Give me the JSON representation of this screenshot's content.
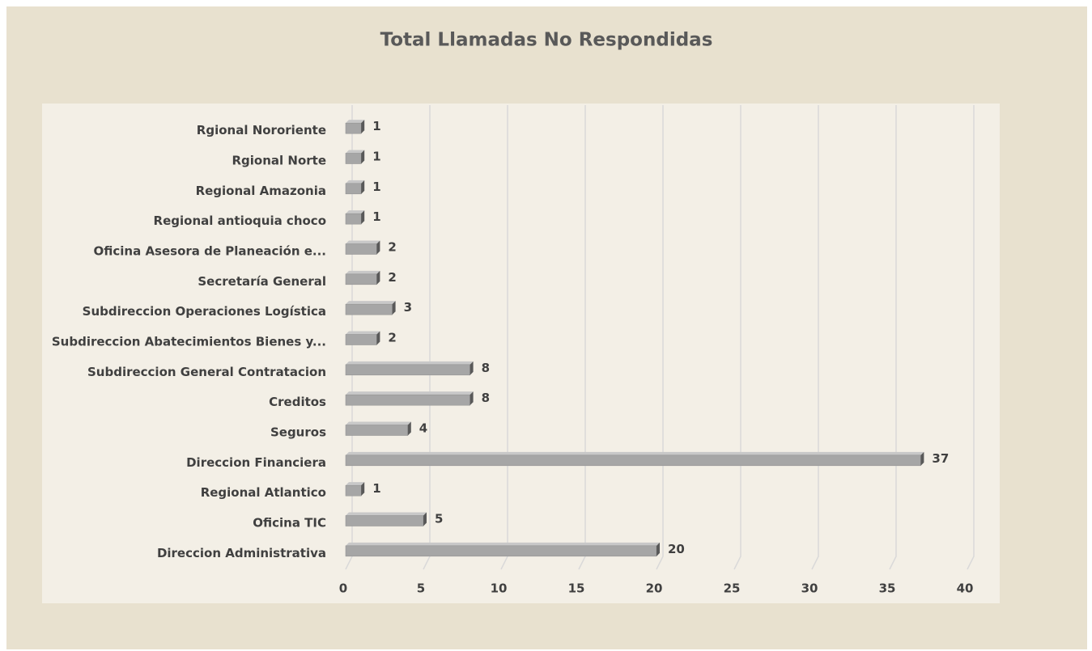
{
  "chart_data": {
    "type": "bar",
    "orientation": "horizontal",
    "title": "Total Llamadas No Respondidas",
    "categories": [
      "Rgional Nororiente",
      "Rgional Norte",
      "Regional Amazonia",
      "Regional antioquia choco",
      "Oficina Asesora de Planeación e...",
      "Secretaría General",
      "Subdireccion Operaciones Logística",
      "Subdireccion Abatecimientos Bienes y...",
      "Subdireccion General Contratacion",
      "Creditos",
      "Seguros",
      "Direccion Financiera",
      "Regional Atlantico",
      "Oficina TIC",
      "Direccion Administrativa"
    ],
    "values": [
      1,
      1,
      1,
      1,
      2,
      2,
      3,
      2,
      8,
      8,
      4,
      37,
      1,
      5,
      20
    ],
    "color": "#a6a6a6",
    "xlim": [
      0,
      40
    ],
    "xticks": [
      0,
      5,
      10,
      15,
      20,
      25,
      30,
      35,
      40
    ],
    "grid": true
  }
}
